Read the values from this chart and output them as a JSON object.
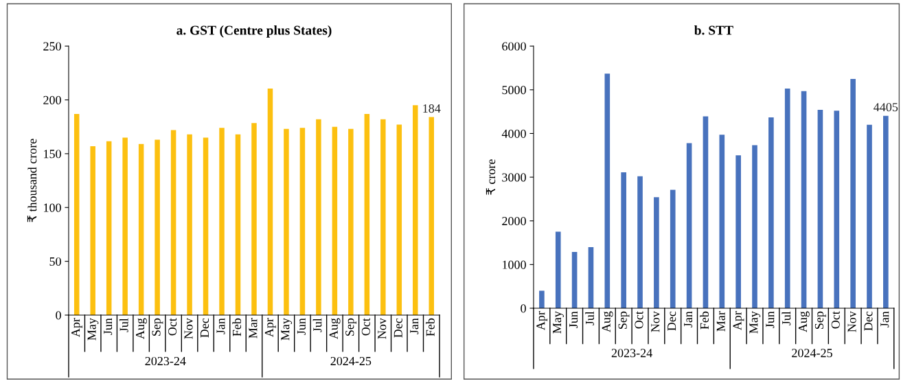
{
  "chart_data": [
    {
      "type": "bar",
      "title": "a. GST (Centre plus States)",
      "ylabel": "₹ thousand crore",
      "categories": [
        "Apr",
        "May",
        "Jun",
        "Jul",
        "Aug",
        "Sep",
        "Oct",
        "Nov",
        "Dec",
        "Jan",
        "Feb",
        "Mar",
        "Apr",
        "May",
        "Jun",
        "Jul",
        "Aug",
        "Sep",
        "Oct",
        "Nov",
        "Dec",
        "Jan",
        "Feb"
      ],
      "series": [
        {
          "color": "#fcc010",
          "values": [
            187,
            157,
            161.5,
            165,
            159,
            163,
            172,
            168,
            165,
            174,
            168,
            178.5,
            210.5,
            173,
            174,
            182,
            175,
            173,
            187,
            182,
            177,
            195,
            184
          ],
          "value_labels": [
            null,
            null,
            null,
            null,
            null,
            null,
            null,
            null,
            null,
            null,
            null,
            null,
            null,
            null,
            null,
            null,
            null,
            null,
            null,
            null,
            null,
            null,
            "184"
          ]
        }
      ],
      "ylim": [
        0,
        250
      ],
      "yticks": [
        0,
        50,
        100,
        150,
        200,
        250
      ],
      "grid": false,
      "legend": false,
      "annotations": [
        "2023-24",
        "2024-25"
      ]
    },
    {
      "type": "bar",
      "title": "b. STT",
      "ylabel": "₹ crore",
      "categories": [
        "Apr",
        "May",
        "Jun",
        "Jul",
        "Aug",
        "Sep",
        "Oct",
        "Nov",
        "Dec",
        "Jan",
        "Feb",
        "Mar",
        "Apr",
        "May",
        "Jun",
        "Jul",
        "Aug",
        "Sep",
        "Oct",
        "Nov",
        "Dec",
        "Jan"
      ],
      "series": [
        {
          "color": "#4872bd",
          "values": [
            400,
            1750,
            1290,
            1400,
            5370,
            3110,
            3020,
            2540,
            2710,
            3780,
            4390,
            3970,
            3500,
            3730,
            4370,
            5030,
            4970,
            4540,
            4520,
            5250,
            4200,
            4405
          ],
          "value_labels": [
            null,
            null,
            null,
            null,
            null,
            null,
            null,
            null,
            null,
            null,
            null,
            null,
            null,
            null,
            null,
            null,
            null,
            null,
            null,
            null,
            null,
            "4405"
          ]
        }
      ],
      "ylim": [
        0,
        6000
      ],
      "yticks": [
        0,
        1000,
        2000,
        3000,
        4000,
        5000,
        6000
      ],
      "grid": false,
      "legend": false,
      "annotations": [
        "2023-24",
        "2024-25"
      ]
    }
  ]
}
